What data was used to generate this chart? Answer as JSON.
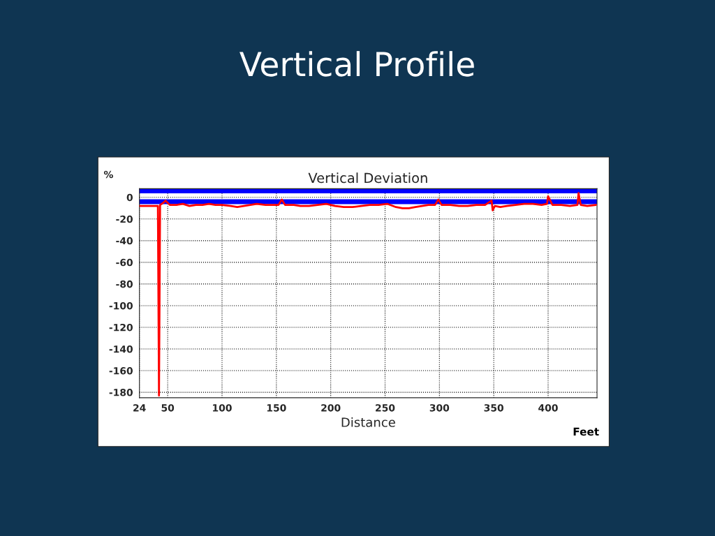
{
  "chart_data": {
    "type": "line",
    "title": "Vertical Deviation",
    "xlabel": "Distance",
    "ylabel": "%",
    "annotations": [
      "Vertical Profile",
      "Feet"
    ],
    "x": [
      24,
      30,
      36,
      41,
      42,
      43,
      46,
      48,
      52,
      58,
      64,
      70,
      76,
      82,
      88,
      94,
      100,
      108,
      114,
      120,
      126,
      132,
      140,
      146,
      152,
      155,
      158,
      166,
      172,
      180,
      188,
      196,
      204,
      212,
      220,
      228,
      236,
      244,
      252,
      260,
      266,
      272,
      278,
      284,
      290,
      296,
      299,
      302,
      310,
      318,
      326,
      334,
      342,
      348,
      349,
      351,
      356,
      362,
      370,
      378,
      386,
      394,
      399,
      400,
      404,
      412,
      420,
      427,
      428,
      430,
      436,
      444
    ],
    "series": [
      {
        "color": "#ff0000",
        "values": [
          -8,
          -8,
          -8,
          -8,
          -183,
          -7,
          -5,
          -3,
          -7,
          -7,
          -6,
          -8,
          -7,
          -7,
          -6,
          -7,
          -7,
          -8,
          -9,
          -8,
          -7,
          -6,
          -7,
          -7,
          -7,
          -2,
          -7,
          -7,
          -8,
          -8,
          -7,
          -6,
          -8,
          -9,
          -9,
          -8,
          -7,
          -7,
          -6,
          -9,
          -10,
          -10,
          -9,
          -8,
          -7,
          -7,
          -2,
          -7,
          -7,
          -8,
          -8,
          -7,
          -7,
          -3,
          -12,
          -8,
          -9,
          -8,
          -7,
          -6,
          -6,
          -7,
          -6,
          1,
          -7,
          -7,
          -8,
          -7,
          4,
          -7,
          -8,
          -7
        ]
      }
    ],
    "xlim": [
      24,
      445
    ],
    "ylim": [
      -185,
      8
    ],
    "xticks": [
      24,
      50,
      100,
      150,
      200,
      250,
      300,
      350,
      400
    ],
    "yticks": [
      0,
      -20,
      -40,
      -60,
      -80,
      -100,
      -120,
      -140,
      -160,
      -180
    ],
    "ref_lines": [
      {
        "axis": "y",
        "value": 6,
        "color": "#0000ff"
      },
      {
        "axis": "y",
        "value": -4,
        "color": "#0000ff"
      }
    ],
    "grid": true,
    "legend": false
  }
}
